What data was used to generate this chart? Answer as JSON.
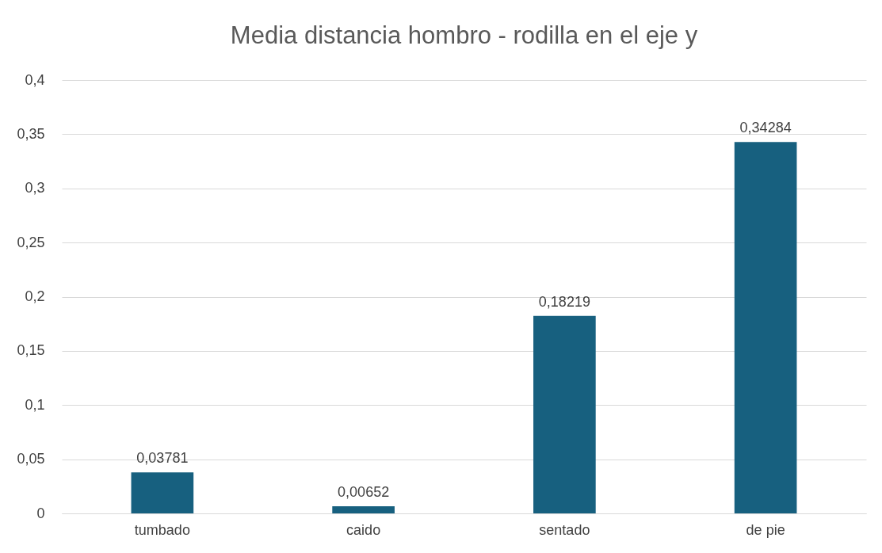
{
  "chart_data": {
    "type": "bar",
    "title": "Media distancia hombro - rodilla en el eje y",
    "categories": [
      "tumbado",
      "caido",
      "sentado",
      "de pie"
    ],
    "values": [
      0.03781,
      0.00652,
      0.18219,
      0.34284
    ],
    "value_labels": [
      "0,03781",
      "0,00652",
      "0,18219",
      "0,34284"
    ],
    "color": "#17607f",
    "ylim": [
      0,
      0.4
    ],
    "yticks": [
      {
        "value": 0,
        "label": "0"
      },
      {
        "value": 0.05,
        "label": "0,05"
      },
      {
        "value": 0.1,
        "label": "0,1"
      },
      {
        "value": 0.15,
        "label": "0,15"
      },
      {
        "value": 0.2,
        "label": "0,2"
      },
      {
        "value": 0.25,
        "label": "0,25"
      },
      {
        "value": 0.3,
        "label": "0,3"
      },
      {
        "value": 0.35,
        "label": "0,35"
      },
      {
        "value": 0.4,
        "label": "0,4"
      }
    ],
    "grid": true
  }
}
